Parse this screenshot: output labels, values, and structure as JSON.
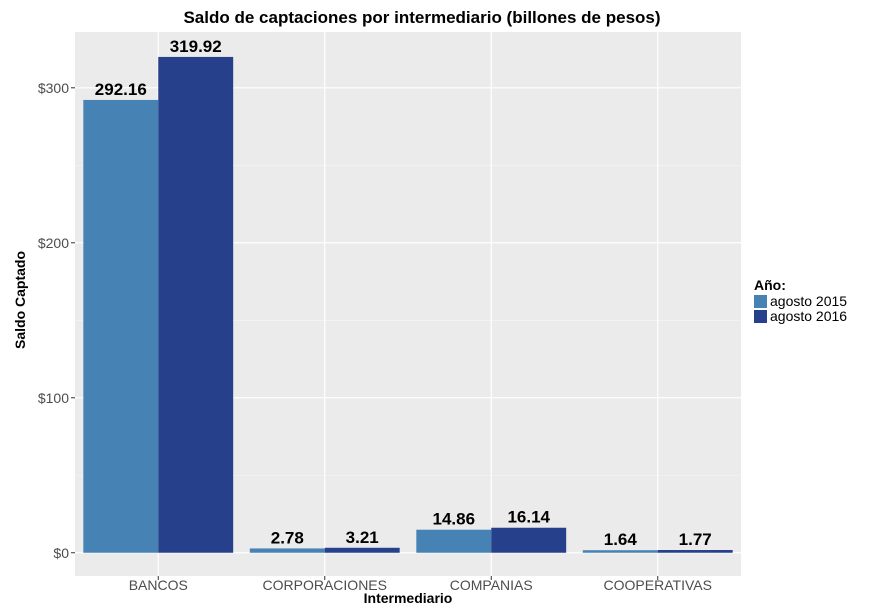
{
  "chart_data": {
    "type": "bar",
    "title": "Saldo de captaciones por intermediario (billones de pesos)",
    "xlabel": "Intermediario",
    "ylabel": "Saldo Captado",
    "categories": [
      "BANCOS",
      "CORPORACIONES",
      "COMPANIAS",
      "COOPERATIVAS"
    ],
    "series": [
      {
        "name": "agosto 2015",
        "values": [
          292.16,
          2.78,
          14.86,
          1.64
        ],
        "color": "#4682B4",
        "labels": [
          "292.16",
          "2.78",
          "14.86",
          "1.64"
        ]
      },
      {
        "name": "agosto 2016",
        "values": [
          319.92,
          3.21,
          16.14,
          1.77
        ],
        "color": "#27408B",
        "labels": [
          "319.92",
          "3.21",
          "16.14",
          "1.77"
        ]
      }
    ],
    "ylim": [
      -15,
      336
    ],
    "yticks": [
      0,
      100,
      200,
      300
    ],
    "ytick_labels": [
      "$0",
      "$100",
      "$200",
      "$300"
    ],
    "grid": true,
    "legend": {
      "title": "Año:",
      "position": "right"
    },
    "panel_background": "#EBEBEB"
  }
}
